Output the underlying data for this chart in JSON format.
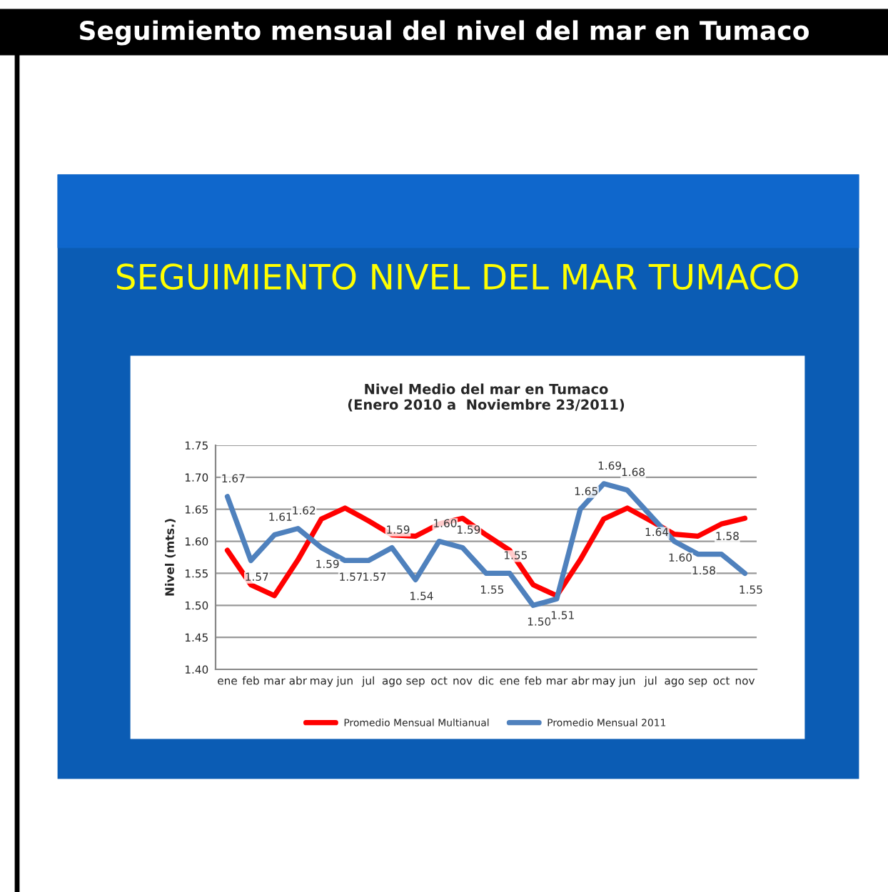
{
  "chart_data": {
    "type": "line",
    "title": "Nivel Medio del mar en Tumaco\n(Enero 2010 a  Noviembre 23/2011)",
    "ylabel": "Nivel (mts.)",
    "annotations": [
      "Seguimiento mensual del nivel del mar en Tumaco",
      "SEGUIMIENTO NIVEL DEL MAR TUMACO"
    ],
    "categories": [
      "ene",
      "feb",
      "mar",
      "abr",
      "may",
      "jun",
      "jul",
      "ago",
      "sep",
      "oct",
      "nov",
      "dic",
      "ene",
      "feb",
      "mar",
      "abr",
      "may",
      "jun",
      "jul",
      "ago",
      "sep",
      "oct",
      "nov"
    ],
    "series": [
      {
        "name": "Promedio Mensual Multianual",
        "color": "#ff0000",
        "values": [
          1.586,
          1.532,
          1.515,
          1.571,
          1.635,
          1.652,
          1.632,
          1.61,
          1.608,
          1.627,
          1.636,
          1.61,
          1.586,
          1.532,
          1.515,
          1.571,
          1.635,
          1.652,
          1.632,
          1.611,
          1.608,
          1.627,
          1.636
        ]
      },
      {
        "name": "Promedio Mensual 2011",
        "color": "#4f81bd",
        "values": [
          1.67,
          1.57,
          1.61,
          1.62,
          1.59,
          1.57,
          1.57,
          1.59,
          1.54,
          1.6,
          1.59,
          1.55,
          1.55,
          1.5,
          1.51,
          1.65,
          1.69,
          1.68,
          1.64,
          1.6,
          1.58,
          1.58,
          1.55
        ],
        "value_labels": [
          "1.67",
          "1.57",
          "1.61",
          "1.62",
          "1.59",
          "1.57",
          "1.57",
          "1.59",
          "1.54",
          "1.60",
          "1.59",
          "1.55",
          "1.55",
          "1.50",
          "1.51",
          "1.65",
          "1.69",
          "1.68",
          "1.64",
          "1.60",
          "1.58",
          "1.58",
          "1.55"
        ]
      }
    ],
    "ylim": [
      1.4,
      1.75
    ],
    "yticks": [
      "1.40",
      "1.45",
      "1.50",
      "1.55",
      "1.60",
      "1.65",
      "1.70",
      "1.75"
    ],
    "grid": "y",
    "legend": "bottom"
  }
}
